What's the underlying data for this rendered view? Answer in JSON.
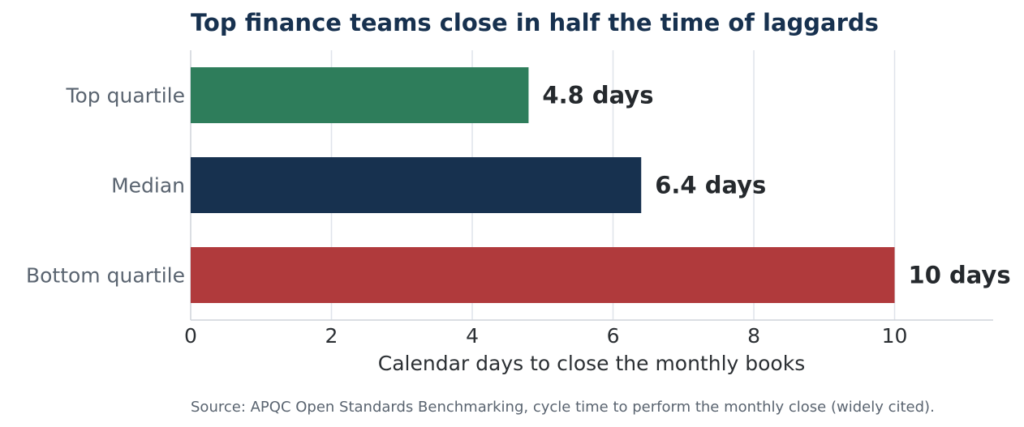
{
  "chart_data": {
    "type": "bar",
    "orientation": "horizontal",
    "title": "Top finance teams close in half the time of laggards",
    "xlabel": "Calendar days to close the monthly books",
    "ylabel": "",
    "categories": [
      "Top quartile",
      "Median",
      "Bottom quartile"
    ],
    "values": [
      4.8,
      6.4,
      10
    ],
    "value_labels": [
      "4.8 days",
      "6.4 days",
      "10 days"
    ],
    "colors": [
      "#2e7d5b",
      "#17314f",
      "#b03a3c"
    ],
    "xlim": [
      0,
      11.4
    ],
    "xticks": [
      0,
      2,
      4,
      6,
      8,
      10
    ],
    "xtick_labels": [
      "0",
      "2",
      "4",
      "6",
      "8",
      "10"
    ],
    "grid": "vertical",
    "legend": "none",
    "source": "Source: APQC Open Standards Benchmarking, cycle time to perform the monthly close (widely cited)."
  }
}
